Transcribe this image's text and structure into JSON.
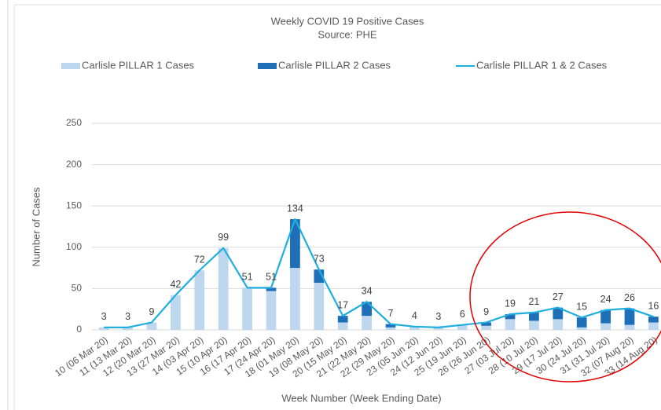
{
  "chart_data": {
    "type": "combo",
    "title": "Weekly COVID 19 Positive Cases",
    "subtitle": "Source: PHE",
    "x_label": "Week Number (Week Ending Date)",
    "y_label": "Number of Cases",
    "categories": [
      "10 (06 Mar 20)",
      "11 (13 Mar 20)",
      "12 (20 Mar 20)",
      "13 (27 Mar 20)",
      "14 (03 Apr 20)",
      "15 (10 Apr 20)",
      "16 (17 Apr 20)",
      "17 (24 Apr 20)",
      "18 (01 May 20)",
      "19 (08 May 20)",
      "20 (15 May 20)",
      "21 (22 May 20)",
      "22 (29 May 20)",
      "23 (05 Jun 20)",
      "24 (12 Jun 20)",
      "25 (19 Jun 20)",
      "26 (26 Jun 20)",
      "27 (03 Jul 20)",
      "28 (10 Jul 20)",
      "29 (17 Jul 20)",
      "30 (24 Jul 20)",
      "31 (31 Jul 20)",
      "32 (07 Aug 20)",
      "33 (14 Aug 20)"
    ],
    "series": [
      {
        "name": "Carlisle PILLAR 1 Cases",
        "type": "bar",
        "color": "#bdd7ee",
        "values": [
          3,
          3,
          9,
          42,
          72,
          99,
          51,
          47,
          75,
          57,
          9,
          17,
          3,
          4,
          3,
          6,
          5,
          13,
          11,
          13,
          3,
          8,
          6,
          9
        ]
      },
      {
        "name": "Carlisle PILLAR 2 Cases",
        "type": "bar",
        "color": "#1f6fb8",
        "values": [
          0,
          0,
          0,
          0,
          0,
          0,
          0,
          4,
          59,
          16,
          8,
          17,
          4,
          0,
          0,
          0,
          4,
          6,
          10,
          14,
          12,
          16,
          20,
          7
        ]
      },
      {
        "name": "Carlisle PILLAR 1 & 2 Cases",
        "type": "line",
        "color": "#1eaee0",
        "data_labels": true,
        "values": [
          3,
          3,
          9,
          42,
          72,
          99,
          51,
          51,
          134,
          73,
          17,
          34,
          7,
          4,
          3,
          6,
          9,
          19,
          21,
          27,
          15,
          24,
          26,
          16
        ]
      }
    ],
    "stacked": true,
    "ylim": [
      0,
      250
    ],
    "yticks": [
      0,
      50,
      100,
      150,
      200,
      250
    ],
    "grid": true,
    "legend": "top"
  }
}
